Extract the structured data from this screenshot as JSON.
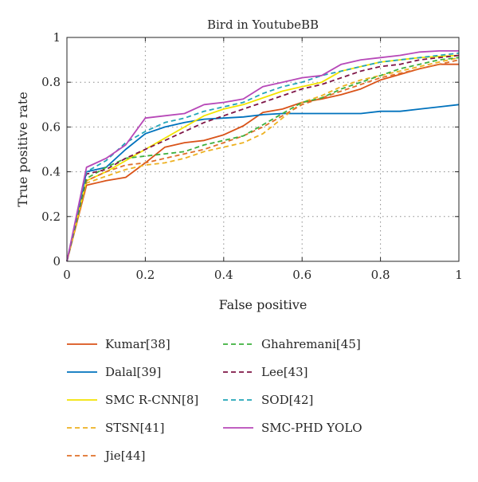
{
  "chart_data": {
    "type": "line",
    "title": "Bird in YoutubeBB",
    "xlabel": "False positive",
    "ylabel": "True positive rate",
    "xlim": [
      0,
      1
    ],
    "ylim": [
      0,
      1
    ],
    "xticks": [
      "0",
      "0.2",
      "0.4",
      "0.6",
      "0.8",
      "1"
    ],
    "yticks": [
      "0",
      "0.2",
      "0.4",
      "0.6",
      "0.8",
      "1"
    ],
    "grid": true,
    "legend_position": "below",
    "series": [
      {
        "name": "Kumar[38]",
        "color": "#d95319",
        "dash": "solid",
        "points": [
          [
            0,
            0
          ],
          [
            0.05,
            0.34
          ],
          [
            0.1,
            0.36
          ],
          [
            0.15,
            0.375
          ],
          [
            0.2,
            0.44
          ],
          [
            0.25,
            0.51
          ],
          [
            0.3,
            0.53
          ],
          [
            0.35,
            0.54
          ],
          [
            0.4,
            0.565
          ],
          [
            0.45,
            0.605
          ],
          [
            0.5,
            0.665
          ],
          [
            0.55,
            0.68
          ],
          [
            0.6,
            0.71
          ],
          [
            0.65,
            0.725
          ],
          [
            0.7,
            0.745
          ],
          [
            0.75,
            0.77
          ],
          [
            0.8,
            0.81
          ],
          [
            0.85,
            0.835
          ],
          [
            0.9,
            0.86
          ],
          [
            0.95,
            0.88
          ],
          [
            1,
            0.88
          ]
        ]
      },
      {
        "name": "Dalal[39]",
        "color": "#0072bd",
        "dash": "solid",
        "points": [
          [
            0,
            0
          ],
          [
            0.05,
            0.4
          ],
          [
            0.1,
            0.42
          ],
          [
            0.15,
            0.5
          ],
          [
            0.2,
            0.57
          ],
          [
            0.25,
            0.6
          ],
          [
            0.3,
            0.62
          ],
          [
            0.35,
            0.635
          ],
          [
            0.4,
            0.64
          ],
          [
            0.45,
            0.645
          ],
          [
            0.5,
            0.655
          ],
          [
            0.55,
            0.66
          ],
          [
            0.6,
            0.66
          ],
          [
            0.65,
            0.66
          ],
          [
            0.7,
            0.66
          ],
          [
            0.75,
            0.66
          ],
          [
            0.8,
            0.67
          ],
          [
            0.85,
            0.67
          ],
          [
            0.9,
            0.68
          ],
          [
            0.95,
            0.69
          ],
          [
            1,
            0.7
          ]
        ]
      },
      {
        "name": "SMC R-CNN[8]",
        "color": "#f2e300",
        "dash": "solid",
        "points": [
          [
            0,
            0
          ],
          [
            0.05,
            0.36
          ],
          [
            0.1,
            0.4
          ],
          [
            0.15,
            0.45
          ],
          [
            0.2,
            0.5
          ],
          [
            0.25,
            0.55
          ],
          [
            0.3,
            0.6
          ],
          [
            0.35,
            0.65
          ],
          [
            0.4,
            0.68
          ],
          [
            0.45,
            0.7
          ],
          [
            0.5,
            0.73
          ],
          [
            0.55,
            0.76
          ],
          [
            0.6,
            0.78
          ],
          [
            0.65,
            0.8
          ],
          [
            0.7,
            0.85
          ],
          [
            0.75,
            0.87
          ],
          [
            0.8,
            0.89
          ],
          [
            0.85,
            0.9
          ],
          [
            0.9,
            0.91
          ],
          [
            0.95,
            0.915
          ],
          [
            1,
            0.92
          ]
        ]
      },
      {
        "name": "STSN[41]",
        "color": "#edb120",
        "dash": "dashed",
        "points": [
          [
            0,
            0
          ],
          [
            0.05,
            0.35
          ],
          [
            0.1,
            0.38
          ],
          [
            0.15,
            0.41
          ],
          [
            0.2,
            0.43
          ],
          [
            0.25,
            0.44
          ],
          [
            0.3,
            0.46
          ],
          [
            0.35,
            0.49
          ],
          [
            0.4,
            0.51
          ],
          [
            0.45,
            0.53
          ],
          [
            0.5,
            0.57
          ],
          [
            0.55,
            0.64
          ],
          [
            0.6,
            0.71
          ],
          [
            0.65,
            0.74
          ],
          [
            0.7,
            0.78
          ],
          [
            0.75,
            0.81
          ],
          [
            0.8,
            0.83
          ],
          [
            0.85,
            0.85
          ],
          [
            0.9,
            0.87
          ],
          [
            0.95,
            0.89
          ],
          [
            1,
            0.91
          ]
        ]
      },
      {
        "name": "Jie[44]",
        "color": "#e0702a",
        "dash": "dashed",
        "points": [
          [
            0,
            0
          ],
          [
            0.05,
            0.36
          ],
          [
            0.1,
            0.4
          ],
          [
            0.15,
            0.43
          ],
          [
            0.2,
            0.44
          ],
          [
            0.25,
            0.46
          ],
          [
            0.3,
            0.48
          ],
          [
            0.35,
            0.5
          ],
          [
            0.4,
            0.53
          ],
          [
            0.45,
            0.56
          ],
          [
            0.5,
            0.6
          ],
          [
            0.55,
            0.65
          ],
          [
            0.6,
            0.7
          ],
          [
            0.65,
            0.73
          ],
          [
            0.7,
            0.76
          ],
          [
            0.75,
            0.79
          ],
          [
            0.8,
            0.82
          ],
          [
            0.85,
            0.84
          ],
          [
            0.9,
            0.86
          ],
          [
            0.95,
            0.88
          ],
          [
            1,
            0.9
          ]
        ]
      },
      {
        "name": "Ghahremani[45]",
        "color": "#3db03d",
        "dash": "dashed",
        "points": [
          [
            0,
            0
          ],
          [
            0.05,
            0.37
          ],
          [
            0.1,
            0.42
          ],
          [
            0.15,
            0.46
          ],
          [
            0.2,
            0.47
          ],
          [
            0.25,
            0.48
          ],
          [
            0.3,
            0.49
          ],
          [
            0.35,
            0.52
          ],
          [
            0.4,
            0.54
          ],
          [
            0.45,
            0.56
          ],
          [
            0.5,
            0.61
          ],
          [
            0.55,
            0.66
          ],
          [
            0.6,
            0.71
          ],
          [
            0.65,
            0.73
          ],
          [
            0.7,
            0.77
          ],
          [
            0.75,
            0.8
          ],
          [
            0.8,
            0.83
          ],
          [
            0.85,
            0.86
          ],
          [
            0.9,
            0.88
          ],
          [
            0.95,
            0.9
          ],
          [
            1,
            0.91
          ]
        ]
      },
      {
        "name": "Lee[43]",
        "color": "#7e1546",
        "dash": "dashed",
        "points": [
          [
            0,
            0
          ],
          [
            0.05,
            0.39
          ],
          [
            0.1,
            0.41
          ],
          [
            0.15,
            0.46
          ],
          [
            0.2,
            0.5
          ],
          [
            0.25,
            0.54
          ],
          [
            0.3,
            0.58
          ],
          [
            0.35,
            0.62
          ],
          [
            0.4,
            0.65
          ],
          [
            0.45,
            0.68
          ],
          [
            0.5,
            0.71
          ],
          [
            0.55,
            0.74
          ],
          [
            0.6,
            0.77
          ],
          [
            0.65,
            0.79
          ],
          [
            0.7,
            0.82
          ],
          [
            0.75,
            0.85
          ],
          [
            0.8,
            0.87
          ],
          [
            0.85,
            0.88
          ],
          [
            0.9,
            0.9
          ],
          [
            0.95,
            0.91
          ],
          [
            1,
            0.92
          ]
        ]
      },
      {
        "name": "SOD[42]",
        "color": "#22a5b8",
        "dash": "dashed",
        "points": [
          [
            0,
            0
          ],
          [
            0.05,
            0.4
          ],
          [
            0.1,
            0.45
          ],
          [
            0.15,
            0.53
          ],
          [
            0.2,
            0.58
          ],
          [
            0.25,
            0.62
          ],
          [
            0.3,
            0.64
          ],
          [
            0.35,
            0.67
          ],
          [
            0.4,
            0.69
          ],
          [
            0.45,
            0.71
          ],
          [
            0.5,
            0.75
          ],
          [
            0.55,
            0.78
          ],
          [
            0.6,
            0.8
          ],
          [
            0.65,
            0.83
          ],
          [
            0.7,
            0.85
          ],
          [
            0.75,
            0.87
          ],
          [
            0.8,
            0.89
          ],
          [
            0.85,
            0.9
          ],
          [
            0.9,
            0.91
          ],
          [
            0.95,
            0.92
          ],
          [
            1,
            0.93
          ]
        ]
      },
      {
        "name": "SMC-PHD YOLO",
        "color": "#b748b8",
        "dash": "solid",
        "points": [
          [
            0,
            0
          ],
          [
            0.05,
            0.42
          ],
          [
            0.1,
            0.46
          ],
          [
            0.15,
            0.52
          ],
          [
            0.2,
            0.64
          ],
          [
            0.25,
            0.65
          ],
          [
            0.3,
            0.66
          ],
          [
            0.35,
            0.7
          ],
          [
            0.4,
            0.71
          ],
          [
            0.45,
            0.725
          ],
          [
            0.5,
            0.78
          ],
          [
            0.55,
            0.8
          ],
          [
            0.6,
            0.82
          ],
          [
            0.65,
            0.83
          ],
          [
            0.7,
            0.88
          ],
          [
            0.75,
            0.9
          ],
          [
            0.8,
            0.91
          ],
          [
            0.85,
            0.92
          ],
          [
            0.9,
            0.935
          ],
          [
            0.95,
            0.94
          ],
          [
            1,
            0.94
          ]
        ]
      }
    ]
  }
}
